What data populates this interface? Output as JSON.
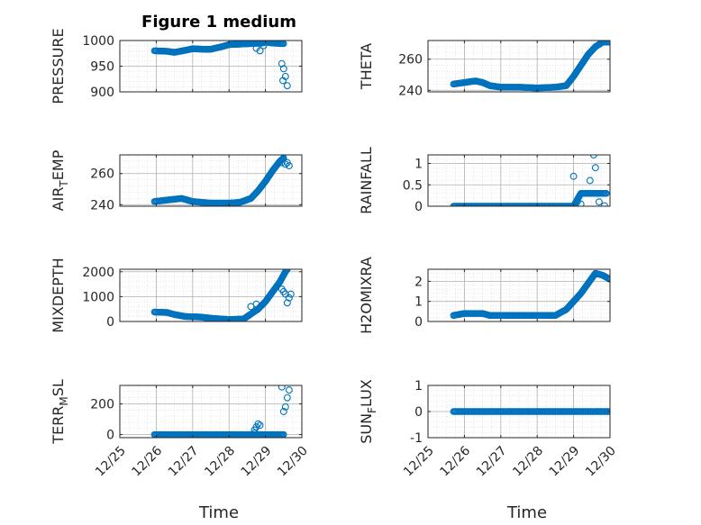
{
  "figure": {
    "title": "Figure 1 medium",
    "xlabel": "Time"
  },
  "colors": {
    "marker": "#0072bd",
    "axis": "#262626",
    "grid": "#b0b0b0",
    "minor_grid": "#d5d5d5"
  },
  "chart_data": [
    {
      "type": "scatter",
      "ylabel": "PRESSURE",
      "ylabel_main": "PRESSURE",
      "ylabel_sub": "",
      "ylabel_tail": "",
      "ylim": [
        900,
        1000
      ],
      "yticks": [
        900,
        950,
        1000
      ],
      "ytick_labels": [
        "900",
        "950",
        "1000"
      ],
      "xlim": [
        0,
        5
      ],
      "xticks": [
        0,
        1,
        2,
        3,
        4,
        5
      ],
      "xtick_labels": [
        "12/25",
        "12/26",
        "12/27",
        "12/28",
        "12/29",
        "12/30"
      ],
      "show_xtick_labels": false,
      "trend": [
        [
          0.95,
          980
        ],
        [
          1.3,
          979
        ],
        [
          1.5,
          977
        ],
        [
          1.8,
          981
        ],
        [
          2.0,
          984
        ],
        [
          2.3,
          983
        ],
        [
          2.5,
          983
        ],
        [
          2.8,
          988
        ],
        [
          3.0,
          992
        ],
        [
          3.3,
          993
        ],
        [
          3.6,
          994
        ],
        [
          3.9,
          995
        ],
        [
          4.0,
          997
        ],
        [
          4.2,
          995
        ],
        [
          4.5,
          994
        ]
      ],
      "outliers": [
        [
          3.75,
          985
        ],
        [
          3.85,
          980
        ],
        [
          3.95,
          990
        ],
        [
          4.45,
          955
        ],
        [
          4.5,
          945
        ],
        [
          4.55,
          930
        ],
        [
          4.48,
          922
        ],
        [
          4.6,
          912
        ]
      ]
    },
    {
      "type": "scatter",
      "ylabel": "THETA",
      "ylabel_main": "THETA",
      "ylabel_sub": "",
      "ylabel_tail": "",
      "ylim": [
        239,
        272
      ],
      "yticks": [
        240,
        260
      ],
      "ytick_labels": [
        "240",
        "260"
      ],
      "xlim": [
        0,
        5
      ],
      "xticks": [
        0,
        1,
        2,
        3,
        4,
        5
      ],
      "xtick_labels": [
        "12/25",
        "12/26",
        "12/27",
        "12/28",
        "12/29",
        "12/30"
      ],
      "show_xtick_labels": false,
      "trend": [
        [
          0.7,
          244
        ],
        [
          1.0,
          245
        ],
        [
          1.3,
          246
        ],
        [
          1.5,
          245
        ],
        [
          1.7,
          243
        ],
        [
          2.0,
          242
        ],
        [
          2.5,
          242
        ],
        [
          3.0,
          241.5
        ],
        [
          3.5,
          242
        ],
        [
          3.8,
          243
        ],
        [
          4.0,
          249
        ],
        [
          4.2,
          256
        ],
        [
          4.4,
          263
        ],
        [
          4.6,
          268
        ],
        [
          4.8,
          271
        ],
        [
          5.0,
          271
        ]
      ]
    },
    {
      "type": "scatter",
      "ylabel": "AIR_TEMP",
      "ylabel_main": "AIR",
      "ylabel_sub": "T",
      "ylabel_tail": "EMP",
      "ylim": [
        239,
        272
      ],
      "yticks": [
        240,
        260
      ],
      "ytick_labels": [
        "240",
        "260"
      ],
      "xlim": [
        0,
        5
      ],
      "xticks": [
        0,
        1,
        2,
        3,
        4,
        5
      ],
      "xtick_labels": [
        "12/25",
        "12/26",
        "12/27",
        "12/28",
        "12/29",
        "12/30"
      ],
      "show_xtick_labels": false,
      "trend": [
        [
          0.95,
          242
        ],
        [
          1.3,
          243
        ],
        [
          1.7,
          244
        ],
        [
          2.0,
          242
        ],
        [
          2.5,
          241
        ],
        [
          3.0,
          241
        ],
        [
          3.3,
          241.5
        ],
        [
          3.6,
          244
        ],
        [
          3.8,
          249
        ],
        [
          4.0,
          255
        ],
        [
          4.2,
          262
        ],
        [
          4.4,
          268
        ],
        [
          4.5,
          270
        ]
      ],
      "outliers": [
        [
          4.45,
          267
        ],
        [
          4.55,
          266
        ],
        [
          4.6,
          267
        ],
        [
          4.65,
          265
        ]
      ]
    },
    {
      "type": "scatter",
      "ylabel": "RAINFALL",
      "ylabel_main": "RAINFALL",
      "ylabel_sub": "",
      "ylabel_tail": "",
      "ylim": [
        0,
        1.2
      ],
      "yticks": [
        0,
        0.5,
        1
      ],
      "ytick_labels": [
        "0",
        "0.5",
        "1"
      ],
      "xlim": [
        0,
        5
      ],
      "xticks": [
        0,
        1,
        2,
        3,
        4,
        5
      ],
      "xtick_labels": [
        "12/25",
        "12/26",
        "12/27",
        "12/28",
        "12/29",
        "12/30"
      ],
      "show_xtick_labels": false,
      "trend": [
        [
          0.7,
          0
        ],
        [
          4.0,
          0
        ],
        [
          4.2,
          0.3
        ],
        [
          4.9,
          0.3
        ]
      ],
      "outliers": [
        [
          4.0,
          0.7
        ],
        [
          4.1,
          0.1
        ],
        [
          4.2,
          0.05
        ],
        [
          4.45,
          0.6
        ],
        [
          4.55,
          1.2
        ],
        [
          4.6,
          0.9
        ],
        [
          4.7,
          0.1
        ],
        [
          4.85,
          0.01
        ]
      ]
    },
    {
      "type": "scatter",
      "ylabel": "MIXDEPTH",
      "ylabel_main": "MIXDEPTH",
      "ylabel_sub": "",
      "ylabel_tail": "",
      "ylim": [
        0,
        2100
      ],
      "yticks": [
        0,
        1000,
        2000
      ],
      "ytick_labels": [
        "0",
        "1000",
        "2000"
      ],
      "xlim": [
        0,
        5
      ],
      "xticks": [
        0,
        1,
        2,
        3,
        4,
        5
      ],
      "xtick_labels": [
        "12/25",
        "12/26",
        "12/27",
        "12/28",
        "12/29",
        "12/30"
      ],
      "show_xtick_labels": false,
      "trend": [
        [
          0.95,
          380
        ],
        [
          1.3,
          360
        ],
        [
          1.5,
          280
        ],
        [
          1.8,
          200
        ],
        [
          2.2,
          180
        ],
        [
          2.6,
          120
        ],
        [
          3.0,
          80
        ],
        [
          3.4,
          100
        ],
        [
          3.6,
          300
        ],
        [
          3.8,
          500
        ],
        [
          4.0,
          800
        ],
        [
          4.2,
          1200
        ],
        [
          4.4,
          1600
        ],
        [
          4.55,
          2000
        ],
        [
          4.6,
          2100
        ]
      ],
      "outliers": [
        [
          3.6,
          600
        ],
        [
          3.75,
          700
        ],
        [
          4.45,
          1300
        ],
        [
          4.5,
          1200
        ],
        [
          4.55,
          1100
        ],
        [
          4.6,
          750
        ],
        [
          4.65,
          950
        ],
        [
          4.7,
          1100
        ]
      ]
    },
    {
      "type": "scatter",
      "ylabel": "H2OMIXRA",
      "ylabel_main": "H2OMIXRA",
      "ylabel_sub": "",
      "ylabel_tail": "",
      "ylim": [
        0,
        2.6
      ],
      "yticks": [
        0,
        1,
        2
      ],
      "ytick_labels": [
        "0",
        "1",
        "2"
      ],
      "xlim": [
        0,
        5
      ],
      "xticks": [
        0,
        1,
        2,
        3,
        4,
        5
      ],
      "xtick_labels": [
        "12/25",
        "12/26",
        "12/27",
        "12/28",
        "12/29",
        "12/30"
      ],
      "show_xtick_labels": false,
      "trend": [
        [
          0.7,
          0.3
        ],
        [
          1.0,
          0.4
        ],
        [
          1.5,
          0.4
        ],
        [
          1.7,
          0.3
        ],
        [
          2.5,
          0.3
        ],
        [
          3.5,
          0.3
        ],
        [
          3.8,
          0.6
        ],
        [
          4.0,
          1.0
        ],
        [
          4.2,
          1.4
        ],
        [
          4.4,
          1.9
        ],
        [
          4.6,
          2.4
        ],
        [
          4.8,
          2.3
        ],
        [
          5.0,
          2.1
        ]
      ]
    },
    {
      "type": "scatter",
      "ylabel": "TERR_MSL",
      "ylabel_main": "TERR",
      "ylabel_sub": "M",
      "ylabel_tail": "SL",
      "ylim": [
        -20,
        320
      ],
      "yticks": [
        0,
        200
      ],
      "ytick_labels": [
        "0",
        "200"
      ],
      "xlim": [
        0,
        5
      ],
      "xticks": [
        0,
        1,
        2,
        3,
        4,
        5
      ],
      "xtick_labels": [
        "12/25",
        "12/26",
        "12/27",
        "12/28",
        "12/29",
        "12/30"
      ],
      "show_xtick_labels": true,
      "trend": [
        [
          0.95,
          0
        ],
        [
          4.5,
          0
        ]
      ],
      "outliers": [
        [
          3.7,
          30
        ],
        [
          3.75,
          50
        ],
        [
          3.8,
          70
        ],
        [
          3.85,
          60
        ],
        [
          4.45,
          310
        ],
        [
          4.5,
          150
        ],
        [
          4.55,
          180
        ],
        [
          4.6,
          240
        ],
        [
          4.65,
          290
        ],
        [
          3.7,
          10
        ]
      ]
    },
    {
      "type": "scatter",
      "ylabel": "SUN_FLUX",
      "ylabel_main": "SUN",
      "ylabel_sub": "F",
      "ylabel_tail": "LUX",
      "ylim": [
        -1,
        1
      ],
      "yticks": [
        -1,
        0,
        1
      ],
      "ytick_labels": [
        "-1",
        "0",
        "1"
      ],
      "xlim": [
        0,
        5
      ],
      "xticks": [
        0,
        1,
        2,
        3,
        4,
        5
      ],
      "xtick_labels": [
        "12/25",
        "12/26",
        "12/27",
        "12/28",
        "12/29",
        "12/30"
      ],
      "show_xtick_labels": true,
      "trend": [
        [
          0.7,
          0
        ],
        [
          5.0,
          0
        ]
      ]
    }
  ]
}
